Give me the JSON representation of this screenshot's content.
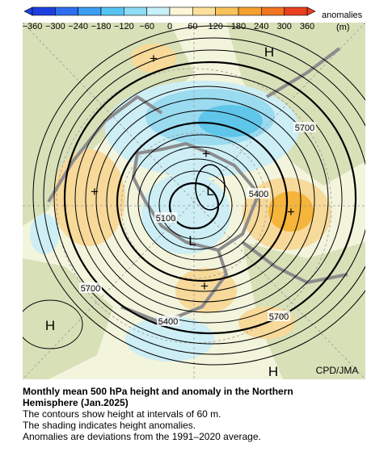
{
  "colorbar": {
    "ticks": [
      "−360",
      "−300",
      "−240",
      "−180",
      "−120",
      "−60",
      "0",
      "60",
      "120",
      "180",
      "240",
      "300",
      "360"
    ],
    "title": "anomalies",
    "unit": "(m)"
  },
  "map": {
    "highs": [
      "H",
      "H",
      "H"
    ],
    "lows": [
      "L",
      "L"
    ],
    "anomaly_centers": [
      "+",
      "+",
      "+",
      "+",
      "+"
    ],
    "contour_labels": [
      "5700",
      "5400",
      "5100",
      "5700",
      "5400",
      "5700"
    ],
    "credit": "CPD/JMA"
  },
  "caption": {
    "title": "Monthly mean 500 hPa height and anomaly in the Northern Hemisphere (Jan.2025)",
    "lines": [
      "The contours show height at intervals of 60 m.",
      "The shading indicates height anomalies.",
      "Anomalies are deviations from the 1991–2020 average."
    ]
  }
}
